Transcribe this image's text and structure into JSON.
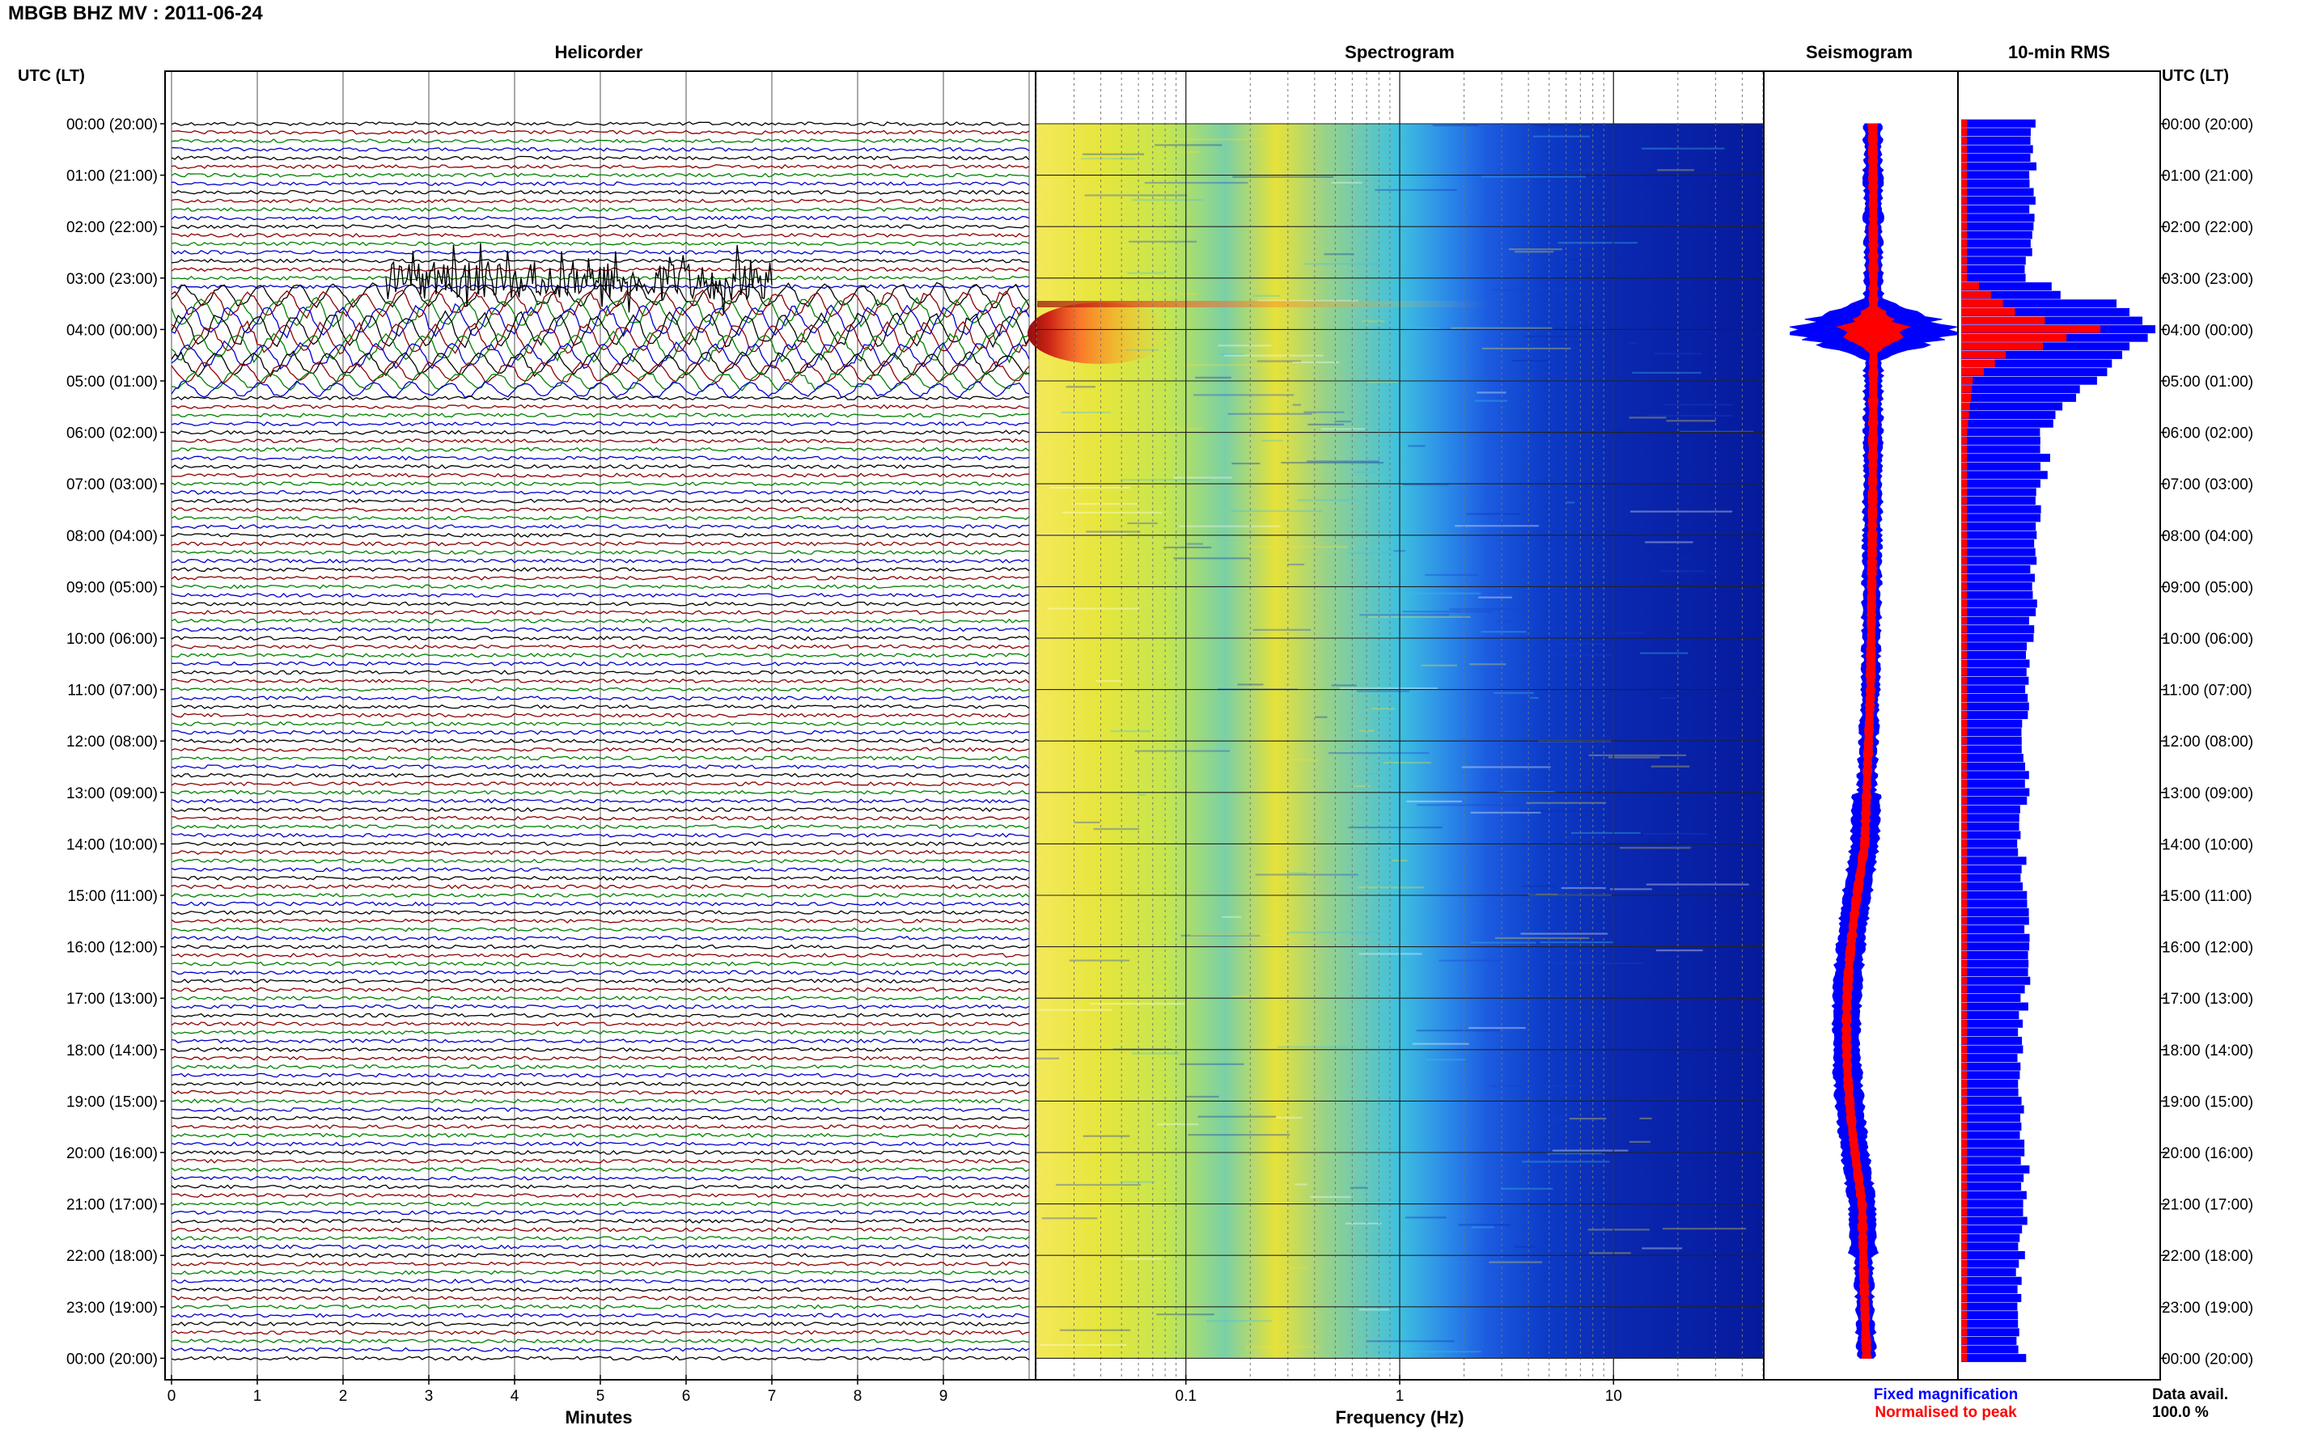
{
  "station_title": "MBGB BHZ MV : 2011-06-24",
  "time_axis_label": "UTC (LT)",
  "time_labels": [
    "00:00 (20:00)",
    "01:00 (21:00)",
    "02:00 (22:00)",
    "03:00 (23:00)",
    "04:00 (00:00)",
    "05:00 (01:00)",
    "06:00 (02:00)",
    "07:00 (03:00)",
    "08:00 (04:00)",
    "09:00 (05:00)",
    "10:00 (06:00)",
    "11:00 (07:00)",
    "12:00 (08:00)",
    "13:00 (09:00)",
    "14:00 (10:00)",
    "15:00 (11:00)",
    "16:00 (12:00)",
    "17:00 (13:00)",
    "18:00 (14:00)",
    "19:00 (15:00)",
    "20:00 (16:00)",
    "21:00 (17:00)",
    "22:00 (18:00)",
    "23:00 (19:00)",
    "00:00 (20:00)"
  ],
  "colors": {
    "trace_cycle": [
      "#000000",
      "#8b0000",
      "#008000",
      "#0000cc"
    ],
    "fixed_mag": "#0000ff",
    "normalised": "#ff0000"
  },
  "chart_data": [
    {
      "type": "line",
      "panel": "helicorder",
      "title": "Helicorder",
      "xlabel": "Minutes",
      "x_ticks": [
        "0",
        "1",
        "2",
        "3",
        "4",
        "5",
        "6",
        "7",
        "8",
        "9"
      ],
      "xlim": [
        0,
        10
      ],
      "hours": 24,
      "traces_per_hour": 6,
      "event": {
        "start_hour": 3.25,
        "end_hour": 5.2,
        "peak_hour": 4.0
      }
    },
    {
      "type": "heatmap",
      "panel": "spectrogram",
      "title": "Spectrogram",
      "xlabel": "Frequency (Hz)",
      "x_scale": "log",
      "xlim": [
        0.02,
        50
      ],
      "x_ticks": [
        {
          "value": 0.1,
          "label": "0.1"
        },
        {
          "value": 1,
          "label": "1"
        },
        {
          "value": 10,
          "label": "10"
        }
      ],
      "event": {
        "hour": 4.0,
        "freq_range": [
          0.02,
          0.15
        ]
      }
    },
    {
      "type": "line",
      "panel": "seismogram",
      "title": "Seismogram",
      "series": [
        {
          "name": "Fixed magnification",
          "peak_hour": 4.0
        },
        {
          "name": "Normalised to peak",
          "peak_hour": 4.0
        }
      ]
    },
    {
      "type": "bar",
      "panel": "rms",
      "title": "10-min RMS",
      "interval_minutes": 10,
      "rms_fixed_hourly": [
        0.38,
        0.36,
        0.35,
        0.34,
        0.95,
        0.65,
        0.44,
        0.41,
        0.39,
        0.37,
        0.35,
        0.33,
        0.32,
        0.33,
        0.31,
        0.32,
        0.35,
        0.33,
        0.3,
        0.31,
        0.33,
        0.32,
        0.31,
        0.3,
        0.31
      ],
      "rms_normalised_hourly": [
        0.03,
        0.03,
        0.03,
        0.03,
        0.4,
        0.06,
        0.03,
        0.03,
        0.03,
        0.03,
        0.03,
        0.03,
        0.03,
        0.03,
        0.03,
        0.03,
        0.03,
        0.03,
        0.03,
        0.03,
        0.03,
        0.03,
        0.03,
        0.03,
        0.03
      ]
    }
  ],
  "legend": {
    "fixed": "Fixed magnification",
    "normalised": "Normalised to peak"
  },
  "data_availability": {
    "label": "Data avail.",
    "value": "100.0 %"
  }
}
